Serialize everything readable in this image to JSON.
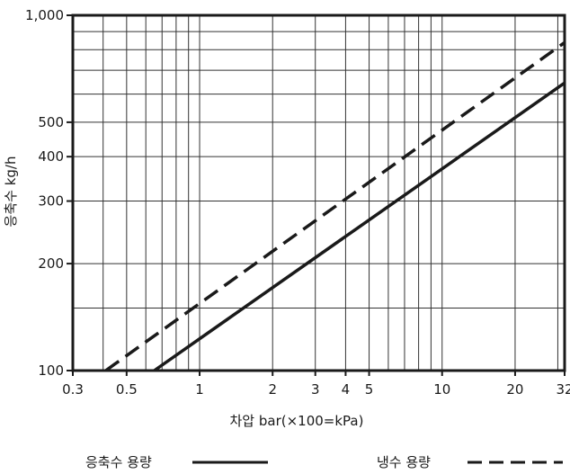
{
  "chart_data": {
    "type": "line",
    "xlabel": "차압 bar(×100=kPa)",
    "ylabel": "응축수 kg/h",
    "xscale": "log",
    "yscale": "log",
    "xlim": [
      0.3,
      32
    ],
    "ylim": [
      100,
      1000
    ],
    "x_ticks": [
      0.3,
      0.5,
      1,
      2,
      3,
      4,
      5,
      10,
      20,
      32
    ],
    "x_tick_labels": [
      "0.3",
      "0.5",
      "1",
      "2",
      "3",
      "4",
      "5",
      "10",
      "20",
      "32"
    ],
    "y_ticks": [
      100,
      200,
      300,
      400,
      500,
      1000
    ],
    "y_tick_labels": [
      "100",
      "200",
      "300",
      "400",
      "500",
      "1,000"
    ],
    "x_grid": [
      0.3,
      0.4,
      0.5,
      0.6,
      0.7,
      0.8,
      0.9,
      1,
      2,
      3,
      4,
      5,
      6,
      7,
      8,
      9,
      10,
      20,
      30
    ],
    "y_grid": [
      100,
      150,
      200,
      300,
      400,
      500,
      600,
      700,
      800,
      900,
      1000
    ],
    "grid": true,
    "legend_position": "bottom",
    "series": [
      {
        "name": "응축수 용량",
        "style": "solid",
        "x": [
          0.65,
          32
        ],
        "y": [
          100,
          645
        ]
      },
      {
        "name": "냉수 용량",
        "style": "dashed",
        "x": [
          0.41,
          32
        ],
        "y": [
          100,
          838
        ]
      }
    ]
  }
}
